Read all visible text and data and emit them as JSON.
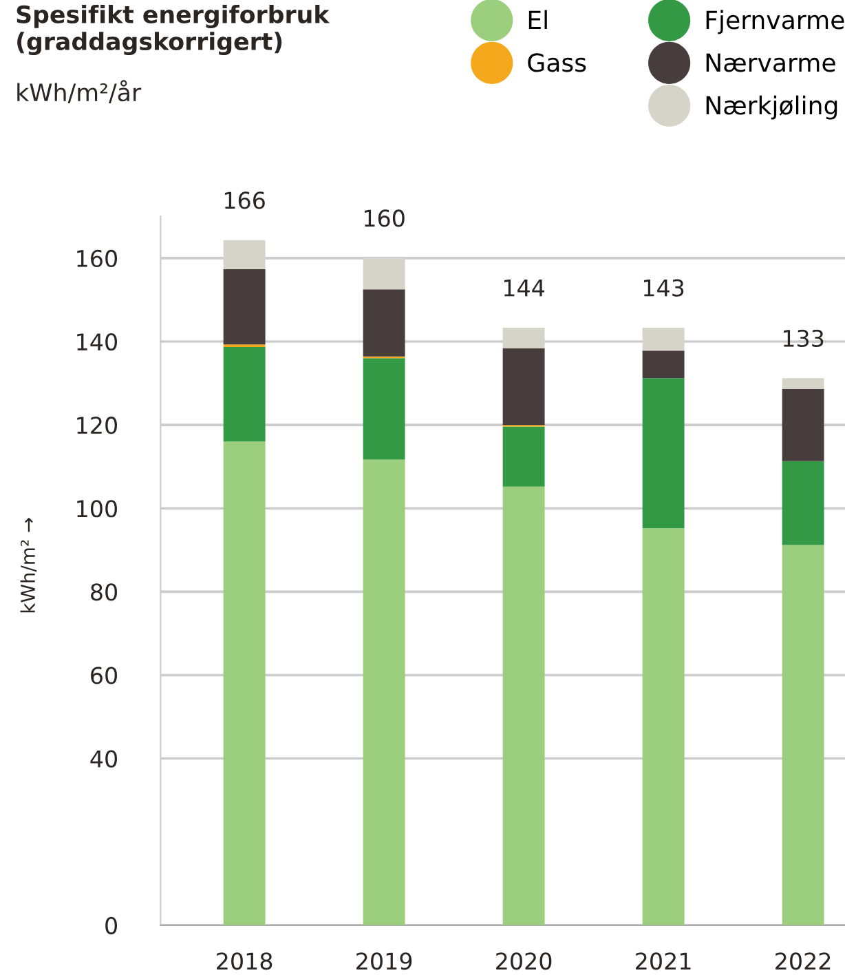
{
  "chart_data": {
    "type": "bar",
    "stacked": true,
    "title": "Spesifikt energiforbruk\n(graddagskorrigert)",
    "subtitle": "kWh/m²/år",
    "ylabel": "kWh/m² →",
    "categories": [
      "2018",
      "2019",
      "2020",
      "2021",
      "2022"
    ],
    "series": [
      {
        "name": "El",
        "color": "#9bcf7e",
        "values": [
          116.0,
          111.7,
          105.2,
          95.2,
          91.2
        ]
      },
      {
        "name": "Fjernvarme",
        "color": "#339944",
        "values": [
          22.7,
          24.3,
          14.4,
          36.0,
          20.1
        ]
      },
      {
        "name": "Gass",
        "color": "#f5a81c",
        "values": [
          0.6,
          0.4,
          0.4,
          0,
          0
        ]
      },
      {
        "name": "Nærvarme",
        "color": "#463d3c",
        "values": [
          18.1,
          16.1,
          18.4,
          6.6,
          17.3
        ]
      },
      {
        "name": "Nærkjøling",
        "color": "#d6d4c9",
        "values": [
          6.9,
          7.5,
          4.9,
          5.5,
          2.6
        ]
      }
    ],
    "totals": [
      "166",
      "160",
      "144",
      "143",
      "133"
    ],
    "ylim": [
      0,
      170
    ],
    "yticks": [
      0,
      40,
      60,
      80,
      100,
      120,
      140,
      160
    ],
    "grid": "y",
    "legend": "top right"
  }
}
